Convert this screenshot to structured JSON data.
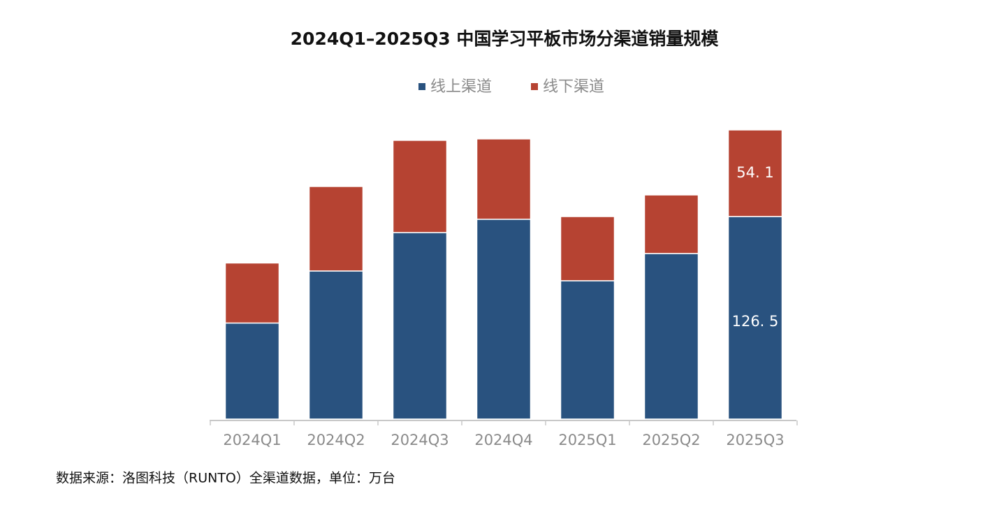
{
  "chart_data": {
    "type": "stacked_bar",
    "title": "2024Q1–2025Q3 中国学习平板市场分渠道销量规模",
    "categories": [
      "2024Q1",
      "2024Q2",
      "2024Q3",
      "2024Q4",
      "2025Q1",
      "2025Q2",
      "2025Q3"
    ],
    "series": [
      {
        "name": "线上渠道",
        "color": "#29527f",
        "values": [
          60,
          92.5,
          116.5,
          124.8,
          86.4,
          103.4,
          126.5
        ],
        "value_labels": [
          null,
          null,
          null,
          null,
          null,
          null,
          "126. 5"
        ]
      },
      {
        "name": "线下渠道",
        "color": "#b64332",
        "values": [
          37.5,
          52.8,
          57.6,
          50.2,
          40.1,
          36.6,
          54.1
        ],
        "value_labels": [
          null,
          null,
          null,
          null,
          null,
          null,
          "54. 1"
        ]
      }
    ],
    "source": "数据来源：洛图科技（RUNTO）全渠道数据，单位：万台"
  }
}
